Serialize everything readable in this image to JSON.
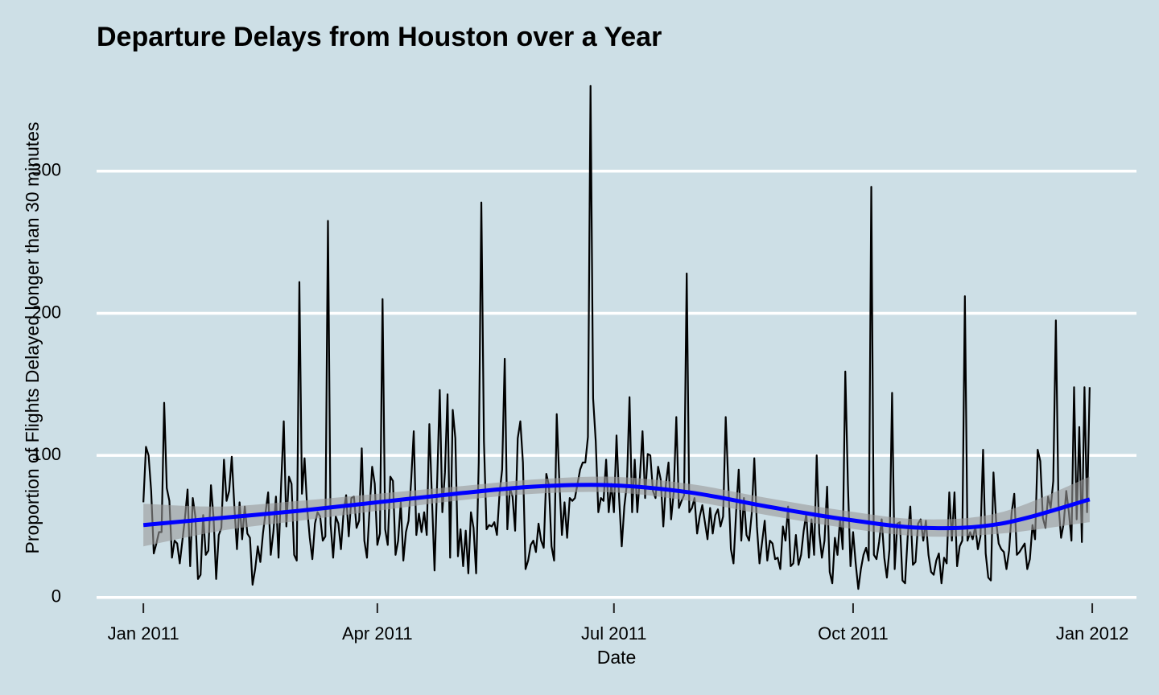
{
  "chart_data": {
    "type": "line",
    "title": "Departure Delays from Houston over a Year",
    "x_label": "Date",
    "y_label": "Proportion of Flights Delayed longer than 30 minutes",
    "xlim": [
      -18,
      382
    ],
    "xticks": [
      {
        "value": 0,
        "label": "Jan 2011"
      },
      {
        "value": 90,
        "label": "Apr 2011"
      },
      {
        "value": 181,
        "label": "Jul 2011"
      },
      {
        "value": 273,
        "label": "Oct 2011"
      },
      {
        "value": 365,
        "label": "Jan 2012"
      }
    ],
    "ylim": [
      -12,
      378
    ],
    "yticks": [
      0,
      100,
      200,
      300
    ],
    "grid": true,
    "series": [
      {
        "color": "#000000",
        "values": [
          67,
          106,
          100,
          75,
          31,
          38,
          46,
          46,
          137,
          77,
          68,
          28,
          40,
          38,
          24,
          40,
          56,
          76,
          22,
          70,
          57,
          13,
          16,
          58,
          30,
          33,
          79,
          56,
          13,
          44,
          49,
          97,
          68,
          75,
          99,
          64,
          34,
          67,
          41,
          64,
          45,
          42,
          9,
          20,
          36,
          25,
          45,
          60,
          74,
          30,
          46,
          71,
          28,
          80,
          124,
          50,
          85,
          80,
          30,
          26,
          222,
          73,
          98,
          63,
          42,
          27,
          52,
          60,
          57,
          40,
          43,
          265,
          52,
          28,
          57,
          52,
          34,
          60,
          72,
          43,
          70,
          71,
          49,
          54,
          105,
          40,
          28,
          62,
          92,
          80,
          37,
          45,
          210,
          48,
          37,
          85,
          82,
          30,
          40,
          67,
          26,
          46,
          54,
          82,
          117,
          44,
          59,
          46,
          60,
          44,
          122,
          70,
          19,
          81,
          146,
          60,
          88,
          143,
          28,
          132,
          112,
          29,
          48,
          22,
          47,
          17,
          60,
          49,
          17,
          95,
          278,
          110,
          48,
          51,
          50,
          53,
          44,
          73,
          90,
          168,
          48,
          77,
          71,
          47,
          112,
          124,
          95,
          20,
          26,
          37,
          40,
          32,
          52,
          40,
          35,
          87,
          79,
          36,
          26,
          129,
          82,
          44,
          67,
          42,
          70,
          68,
          70,
          80,
          90,
          95,
          95,
          113,
          360,
          140,
          110,
          60,
          70,
          68,
          97,
          60,
          80,
          60,
          114,
          70,
          36,
          64,
          80,
          141,
          60,
          97,
          60,
          85,
          117,
          70,
          101,
          100,
          75,
          70,
          92,
          83,
          50,
          80,
          95,
          55,
          74,
          127,
          63,
          68,
          72,
          228,
          60,
          63,
          70,
          45,
          57,
          65,
          53,
          41,
          63,
          45,
          58,
          62,
          50,
          57,
          127,
          80,
          34,
          24,
          60,
          90,
          40,
          70,
          44,
          40,
          59,
          98,
          50,
          24,
          39,
          54,
          26,
          40,
          38,
          27,
          28,
          20,
          50,
          40,
          64,
          22,
          24,
          44,
          23,
          30,
          47,
          59,
          28,
          55,
          30,
          100,
          45,
          28,
          40,
          78,
          18,
          10,
          42,
          30,
          56,
          34,
          159,
          80,
          22,
          46,
          24,
          6,
          20,
          30,
          35,
          26,
          289,
          30,
          27,
          39,
          55,
          28,
          14,
          34,
          144,
          20,
          52,
          53,
          12,
          10,
          43,
          64,
          23,
          25,
          52,
          55,
          40,
          54,
          30,
          18,
          16,
          26,
          31,
          10,
          28,
          24,
          74,
          40,
          74,
          22,
          36,
          40,
          212,
          40,
          46,
          41,
          50,
          34,
          43,
          104,
          31,
          14,
          12,
          88,
          54,
          38,
          34,
          32,
          20,
          33,
          60,
          73,
          30,
          32,
          35,
          38,
          20,
          27,
          51,
          41,
          104,
          96,
          56,
          49,
          71,
          63,
          82,
          195,
          66,
          42,
          52,
          75,
          60,
          40,
          148,
          55,
          120,
          39,
          148,
          60,
          148
        ]
      }
    ],
    "smooth": {
      "color": "#0000ff",
      "band_color": "#9a9a9a",
      "x": [
        0,
        30,
        60,
        90,
        120,
        150,
        180,
        210,
        240,
        270,
        300,
        330,
        364
      ],
      "values": [
        51,
        56,
        61,
        67,
        73,
        78,
        79,
        74,
        64,
        55,
        49,
        52,
        69
      ],
      "lower": [
        36,
        47,
        54,
        61,
        68,
        73,
        74,
        68,
        58,
        49,
        43,
        45,
        53
      ],
      "upper": [
        66,
        64,
        68,
        73,
        78,
        83,
        85,
        80,
        70,
        61,
        55,
        60,
        85
      ]
    }
  }
}
